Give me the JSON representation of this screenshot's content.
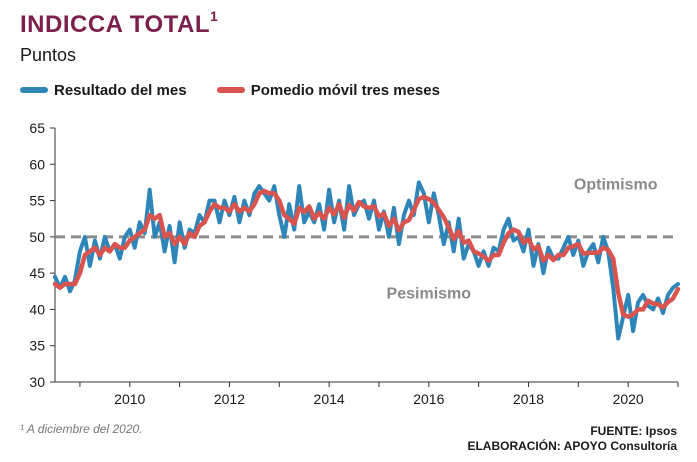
{
  "header": {
    "title": "INDICCA TOTAL",
    "title_sup": "1",
    "subtitle": "Puntos"
  },
  "legend": [
    {
      "label": "Resultado del mes",
      "color": "#2e86b8"
    },
    {
      "label": "Pomedio móvil tres meses",
      "color": "#d9534f"
    }
  ],
  "footer": {
    "footnote": "¹ A diciembre del 2020.",
    "source": "FUENTE: Ipsos",
    "elaboration": "ELABORACIÓN: APOYO Consultoría"
  },
  "chart_data": {
    "type": "line",
    "ylim": [
      30,
      65
    ],
    "yticks": [
      30,
      35,
      40,
      45,
      50,
      55,
      60,
      65
    ],
    "xlim": [
      2008.5,
      2021.0
    ],
    "xticks": [
      2010,
      2012,
      2014,
      2016,
      2018,
      2020
    ],
    "grid": false,
    "reference_line": {
      "y": 50,
      "style": "dashed",
      "color": "#8a8a8a"
    },
    "annotations": [
      {
        "text": "Optimismo",
        "x": 2019.75,
        "y": 56.5
      },
      {
        "text": "Pesimismo",
        "x": 2016.0,
        "y": 41.5
      }
    ],
    "x": [
      2008.5,
      2008.6,
      2008.7,
      2008.8,
      2008.9,
      2009.0,
      2009.1,
      2009.2,
      2009.3,
      2009.4,
      2009.5,
      2009.6,
      2009.7,
      2009.8,
      2009.9,
      2010.0,
      2010.1,
      2010.2,
      2010.3,
      2010.4,
      2010.5,
      2010.6,
      2010.7,
      2010.8,
      2010.9,
      2011.0,
      2011.1,
      2011.2,
      2011.3,
      2011.4,
      2011.5,
      2011.6,
      2011.7,
      2011.8,
      2011.9,
      2012.0,
      2012.1,
      2012.2,
      2012.3,
      2012.4,
      2012.5,
      2012.6,
      2012.7,
      2012.8,
      2012.9,
      2013.0,
      2013.1,
      2013.2,
      2013.3,
      2013.4,
      2013.5,
      2013.6,
      2013.7,
      2013.8,
      2013.9,
      2014.0,
      2014.1,
      2014.2,
      2014.3,
      2014.4,
      2014.5,
      2014.6,
      2014.7,
      2014.8,
      2014.9,
      2015.0,
      2015.1,
      2015.2,
      2015.3,
      2015.4,
      2015.5,
      2015.6,
      2015.7,
      2015.8,
      2015.9,
      2016.0,
      2016.1,
      2016.2,
      2016.3,
      2016.4,
      2016.5,
      2016.6,
      2016.7,
      2016.8,
      2016.9,
      2017.0,
      2017.1,
      2017.2,
      2017.3,
      2017.4,
      2017.5,
      2017.6,
      2017.7,
      2017.8,
      2017.9,
      2018.0,
      2018.1,
      2018.2,
      2018.3,
      2018.4,
      2018.5,
      2018.6,
      2018.7,
      2018.8,
      2018.9,
      2019.0,
      2019.1,
      2019.2,
      2019.3,
      2019.4,
      2019.5,
      2019.6,
      2019.7,
      2019.8,
      2019.9,
      2020.0,
      2020.1,
      2020.2,
      2020.3,
      2020.4,
      2020.5,
      2020.6,
      2020.7,
      2020.8,
      2020.9,
      2021.0
    ],
    "series": [
      {
        "name": "Resultado del mes",
        "color": "#2e86b8",
        "values": [
          44.5,
          43.0,
          44.5,
          42.5,
          44.0,
          48.0,
          50.0,
          46.0,
          49.5,
          47.0,
          50.0,
          48.0,
          49.0,
          47.0,
          50.0,
          51.0,
          48.5,
          52.0,
          50.5,
          56.5,
          50.0,
          52.0,
          48.0,
          51.5,
          46.5,
          52.0,
          48.5,
          51.0,
          50.5,
          53.0,
          52.0,
          55.0,
          55.0,
          52.0,
          55.0,
          53.0,
          55.5,
          52.0,
          55.0,
          53.0,
          56.0,
          57.0,
          56.0,
          55.0,
          57.0,
          53.0,
          50.0,
          54.5,
          51.0,
          57.0,
          52.0,
          53.5,
          52.0,
          54.5,
          51.0,
          56.5,
          52.0,
          55.0,
          51.0,
          57.0,
          53.0,
          54.5,
          55.0,
          52.5,
          55.0,
          51.0,
          53.5,
          50.0,
          54.0,
          49.0,
          53.0,
          55.0,
          53.0,
          57.5,
          56.0,
          52.0,
          56.0,
          53.0,
          49.0,
          52.0,
          48.0,
          52.5,
          47.0,
          49.0,
          48.0,
          46.0,
          48.0,
          46.0,
          48.5,
          48.0,
          51.0,
          52.5,
          49.5,
          50.0,
          48.0,
          51.0,
          46.0,
          49.0,
          45.0,
          48.5,
          47.0,
          47.0,
          48.5,
          50.0,
          47.5,
          49.5,
          46.0,
          48.0,
          49.0,
          46.5,
          50.0,
          48.0,
          43.0,
          36.0,
          39.0,
          42.0,
          37.0,
          41.0,
          42.0,
          40.5,
          40.0,
          41.5,
          39.5,
          42.0,
          43.0,
          43.5
        ]
      },
      {
        "name": "Pomedio móvil tres meses",
        "color": "#d9534f",
        "values": [
          43.5,
          43.0,
          43.5,
          43.5,
          43.5,
          45.0,
          47.5,
          48.0,
          48.5,
          47.5,
          48.5,
          48.0,
          49.0,
          48.5,
          48.5,
          49.5,
          50.0,
          50.5,
          51.0,
          53.0,
          52.5,
          53.0,
          50.0,
          50.5,
          49.0,
          50.0,
          49.0,
          50.5,
          50.0,
          51.5,
          52.0,
          53.5,
          54.5,
          54.0,
          54.0,
          53.5,
          54.5,
          53.5,
          54.0,
          53.5,
          54.5,
          56.0,
          56.3,
          56.0,
          56.0,
          55.0,
          53.0,
          52.5,
          51.8,
          54.0,
          53.4,
          54.2,
          52.5,
          53.3,
          52.5,
          54.0,
          53.1,
          54.5,
          52.6,
          54.4,
          53.6,
          54.8,
          54.2,
          54.0,
          54.2,
          52.8,
          53.2,
          51.5,
          52.5,
          50.9,
          52.0,
          52.3,
          53.7,
          55.2,
          55.5,
          55.2,
          54.7,
          53.7,
          52.7,
          51.3,
          49.7,
          50.8,
          49.2,
          49.5,
          48.0,
          47.7,
          47.3,
          46.7,
          47.5,
          47.5,
          49.2,
          50.5,
          51.0,
          50.7,
          49.2,
          49.7,
          48.3,
          48.7,
          46.7,
          47.5,
          46.8,
          47.5,
          47.5,
          48.5,
          48.7,
          49.0,
          47.7,
          47.8,
          47.8,
          47.8,
          48.5,
          48.2,
          47.0,
          42.3,
          39.3,
          39.0,
          39.3,
          40.0,
          40.0,
          41.2,
          40.8,
          40.7,
          40.3,
          41.0,
          41.5,
          42.8
        ]
      }
    ]
  }
}
